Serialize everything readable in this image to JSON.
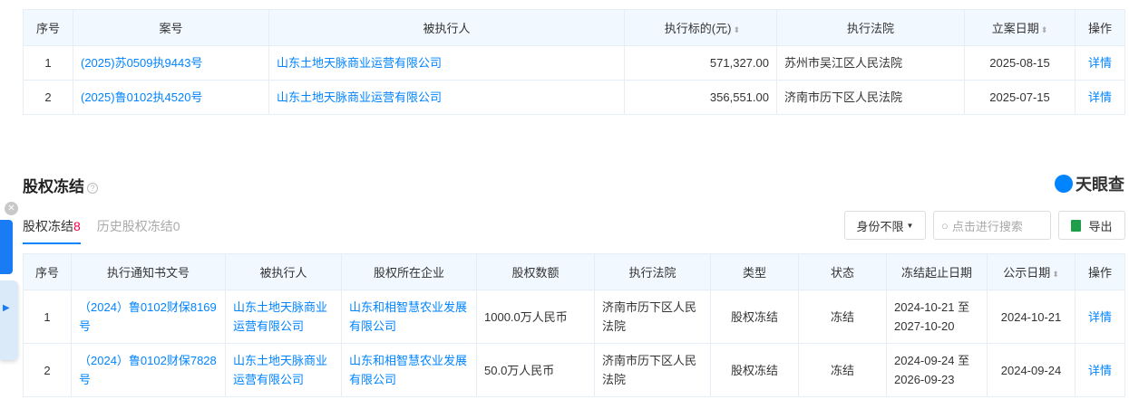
{
  "table1": {
    "headers": [
      "序号",
      "案号",
      "被执行人",
      "执行标的(元)",
      "执行法院",
      "立案日期",
      "操作"
    ],
    "rows": [
      {
        "no": "1",
        "case": "(2025)苏0509执9443号",
        "party": "山东土地天脉商业运营有限公司",
        "amount": "571,327.00",
        "court": "苏州市吴江区人民法院",
        "date": "2025-08-15",
        "action": "详情"
      },
      {
        "no": "2",
        "case": "(2025)鲁0102执4520号",
        "party": "山东土地天脉商业运营有限公司",
        "amount": "356,551.00",
        "court": "济南市历下区人民法院",
        "date": "2025-07-15",
        "action": "详情"
      }
    ]
  },
  "section": {
    "title": "股权冻结",
    "help": "?",
    "logo": "天眼查"
  },
  "tabs": [
    {
      "label": "股权冻结",
      "count": "8"
    },
    {
      "label": "历史股权冻结",
      "count": "0"
    }
  ],
  "toolbar": {
    "filter": "身份不限",
    "search_placeholder": "点击进行搜索",
    "export": "导出"
  },
  "table2": {
    "headers": [
      "序号",
      "执行通知书文号",
      "被执行人",
      "股权所在企业",
      "股权数额",
      "执行法院",
      "类型",
      "状态",
      "冻结起止日期",
      "公示日期",
      "操作"
    ],
    "rows": [
      {
        "no": "1",
        "doc": "（2024）鲁0102财保8169号",
        "party": "山东土地天脉商业运营有限公司",
        "company": "山东和相智慧农业发展有限公司",
        "amount": "1000.0万人民币",
        "court": "济南市历下区人民法院",
        "type": "股权冻结",
        "status": "冻结",
        "period": "2024-10-21 至 2027-10-20",
        "date": "2024-10-21",
        "action": "详情"
      },
      {
        "no": "2",
        "doc": "（2024）鲁0102财保7828号",
        "party": "山东土地天脉商业运营有限公司",
        "company": "山东和相智慧农业发展有限公司",
        "amount": "50.0万人民币",
        "court": "济南市历下区人民法院",
        "type": "股权冻结",
        "status": "冻结",
        "period": "2024-09-24 至 2026-09-23",
        "date": "2024-09-24",
        "action": "详情"
      }
    ]
  }
}
